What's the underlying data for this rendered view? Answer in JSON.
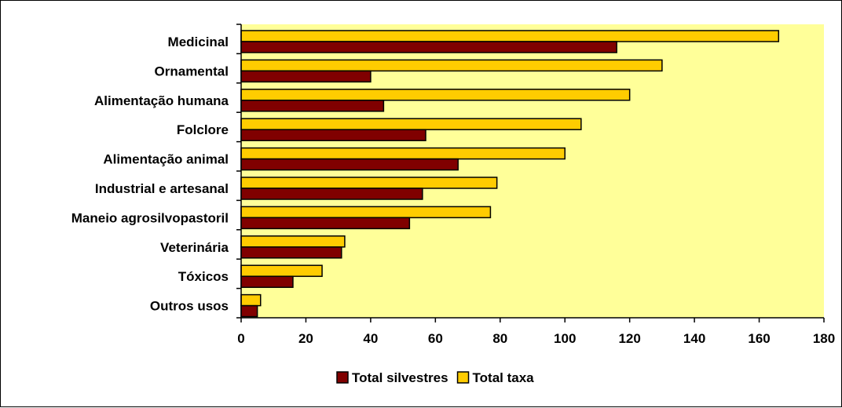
{
  "chart_data": {
    "type": "bar",
    "orientation": "horizontal",
    "categories": [
      "Medicinal",
      "Ornamental",
      "Alimentação humana",
      "Folclore",
      "Alimentação animal",
      "Industrial e artesanal",
      "Maneio agrosilvopastoril",
      "Veterinária",
      "Tóxicos",
      "Outros usos"
    ],
    "series": [
      {
        "name": "Total taxa",
        "color": "#FFCC00",
        "values": [
          166,
          130,
          120,
          105,
          100,
          79,
          77,
          32,
          25,
          6
        ]
      },
      {
        "name": "Total silvestres",
        "color": "#800000",
        "values": [
          116,
          40,
          44,
          57,
          67,
          56,
          52,
          31,
          16,
          5
        ]
      }
    ],
    "legend_order": [
      "Total silvestres",
      "Total taxa"
    ],
    "xlim": [
      0,
      180
    ],
    "xticks": [
      0,
      20,
      40,
      60,
      80,
      100,
      120,
      140,
      160,
      180
    ],
    "plot_background": "#FFFF99",
    "grid": false,
    "legend_position": "bottom-center",
    "title": "",
    "xlabel": "",
    "ylabel": ""
  }
}
